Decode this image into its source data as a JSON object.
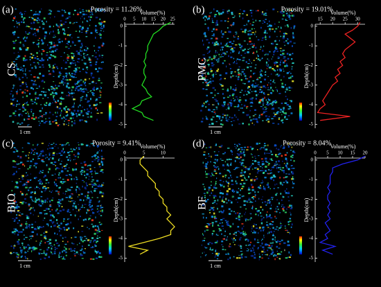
{
  "chart_data": [
    {
      "type": "line",
      "panel": "(a)",
      "title": "Porosity = 11.26%",
      "sample": "CS",
      "scale_bar": "1 cm",
      "xlabel": "Volume(%)",
      "ylabel": "Depth(cm)",
      "depth": [
        0.2,
        0,
        -0.2,
        -0.4,
        -0.6,
        -0.8,
        -1,
        -1.2,
        -1.4,
        -1.6,
        -1.8,
        -2,
        -2.2,
        -2.4,
        -2.6,
        -2.8,
        -3,
        -3.2,
        -3.4,
        -3.6,
        -3.8,
        -4,
        -4.2,
        -4.4,
        -4.6,
        -4.8
      ],
      "series": [
        {
          "color": "#22dd22",
          "values": [
            24,
            20,
            18,
            15,
            14,
            13,
            12,
            12,
            11,
            11,
            10,
            11,
            10,
            10,
            11,
            10,
            9,
            11,
            12,
            14,
            9,
            8,
            4,
            9,
            10,
            15
          ]
        }
      ],
      "xlim": [
        0,
        26
      ],
      "xticks": [
        0,
        5,
        10,
        15,
        20,
        25
      ],
      "ylim": [
        -5.2,
        0.1
      ],
      "yticks": [
        0,
        -1,
        -2,
        -3,
        -4,
        -5
      ]
    },
    {
      "type": "line",
      "panel": "(b)",
      "title": "Porosity = 19.01%",
      "sample": "PMC",
      "scale_bar": "1 cm",
      "xlabel": "Volume(%)",
      "ylabel": "Depth(cm)",
      "depth": [
        0.2,
        0,
        -0.2,
        -0.4,
        -0.6,
        -0.8,
        -1,
        -1.2,
        -1.4,
        -1.6,
        -1.8,
        -2,
        -2.2,
        -2.4,
        -2.6,
        -2.8,
        -3,
        -3.2,
        -3.4,
        -3.6,
        -3.8,
        -4,
        -4.2,
        -4.4,
        -4.6,
        -4.8
      ],
      "series": [
        {
          "color": "#ee2222",
          "values": [
            31,
            30,
            28,
            25,
            27,
            29,
            27,
            25,
            24,
            25,
            23,
            24,
            22,
            23,
            21,
            22,
            20,
            19,
            18,
            17,
            16,
            17,
            15,
            14,
            27,
            15
          ]
        }
      ],
      "xlim": [
        13,
        33
      ],
      "xticks": [
        15,
        20,
        25,
        30
      ],
      "ylim": [
        -5.2,
        0.1
      ],
      "yticks": [
        0,
        -1,
        -2,
        -3,
        -4,
        -5
      ]
    },
    {
      "type": "line",
      "panel": "(c)",
      "title": "Porosity = 9.41%",
      "sample": "BIO",
      "scale_bar": "1 cm",
      "xlabel": "Volume(%)",
      "ylabel": "Depth(cm)",
      "depth": [
        0.2,
        0,
        -0.2,
        -0.4,
        -0.6,
        -0.8,
        -1,
        -1.2,
        -1.4,
        -1.6,
        -1.8,
        -2,
        -2.2,
        -2.4,
        -2.6,
        -2.8,
        -3,
        -3.2,
        -3.4,
        -3.6,
        -3.8,
        -4,
        -4.2,
        -4.4,
        -4.6,
        -4.8
      ],
      "series": [
        {
          "color": "#eedd22",
          "values": [
            5,
            4,
            4,
            5,
            6,
            6,
            7,
            8,
            8,
            9,
            9,
            10,
            10,
            11,
            11,
            12,
            11,
            12,
            13,
            12,
            12,
            9,
            5,
            1,
            6,
            4
          ]
        }
      ],
      "xlim": [
        0,
        13
      ],
      "xticks": [
        0,
        5,
        10
      ],
      "ylim": [
        -5.2,
        0.1
      ],
      "yticks": [
        0,
        -1,
        -2,
        -3,
        -4,
        -5
      ]
    },
    {
      "type": "line",
      "panel": "(d)",
      "title": "Porosity = 8.04%",
      "sample": "BF",
      "scale_bar": "1 cm",
      "xlabel": "Volume(%)",
      "ylabel": "Depth(cm)",
      "depth": [
        0.2,
        0,
        -0.2,
        -0.4,
        -0.6,
        -0.8,
        -1,
        -1.2,
        -1.4,
        -1.6,
        -1.8,
        -2,
        -2.2,
        -2.4,
        -2.6,
        -2.8,
        -3,
        -3.2,
        -3.4,
        -3.6,
        -3.8,
        -4,
        -4.2,
        -4.4,
        -4.6,
        -4.8
      ],
      "series": [
        {
          "color": "#2222ee",
          "values": [
            20,
            17,
            11,
            7,
            7,
            6,
            6,
            6,
            5,
            6,
            5,
            5,
            6,
            5,
            6,
            5,
            6,
            4,
            5,
            6,
            4,
            5,
            2,
            8,
            3,
            7
          ]
        }
      ],
      "xlim": [
        0,
        20
      ],
      "xticks": [
        0,
        5,
        10,
        15,
        20
      ],
      "ylim": [
        -5.2,
        0.1
      ],
      "yticks": [
        0,
        -1,
        -2,
        -3,
        -4,
        -5
      ]
    }
  ]
}
